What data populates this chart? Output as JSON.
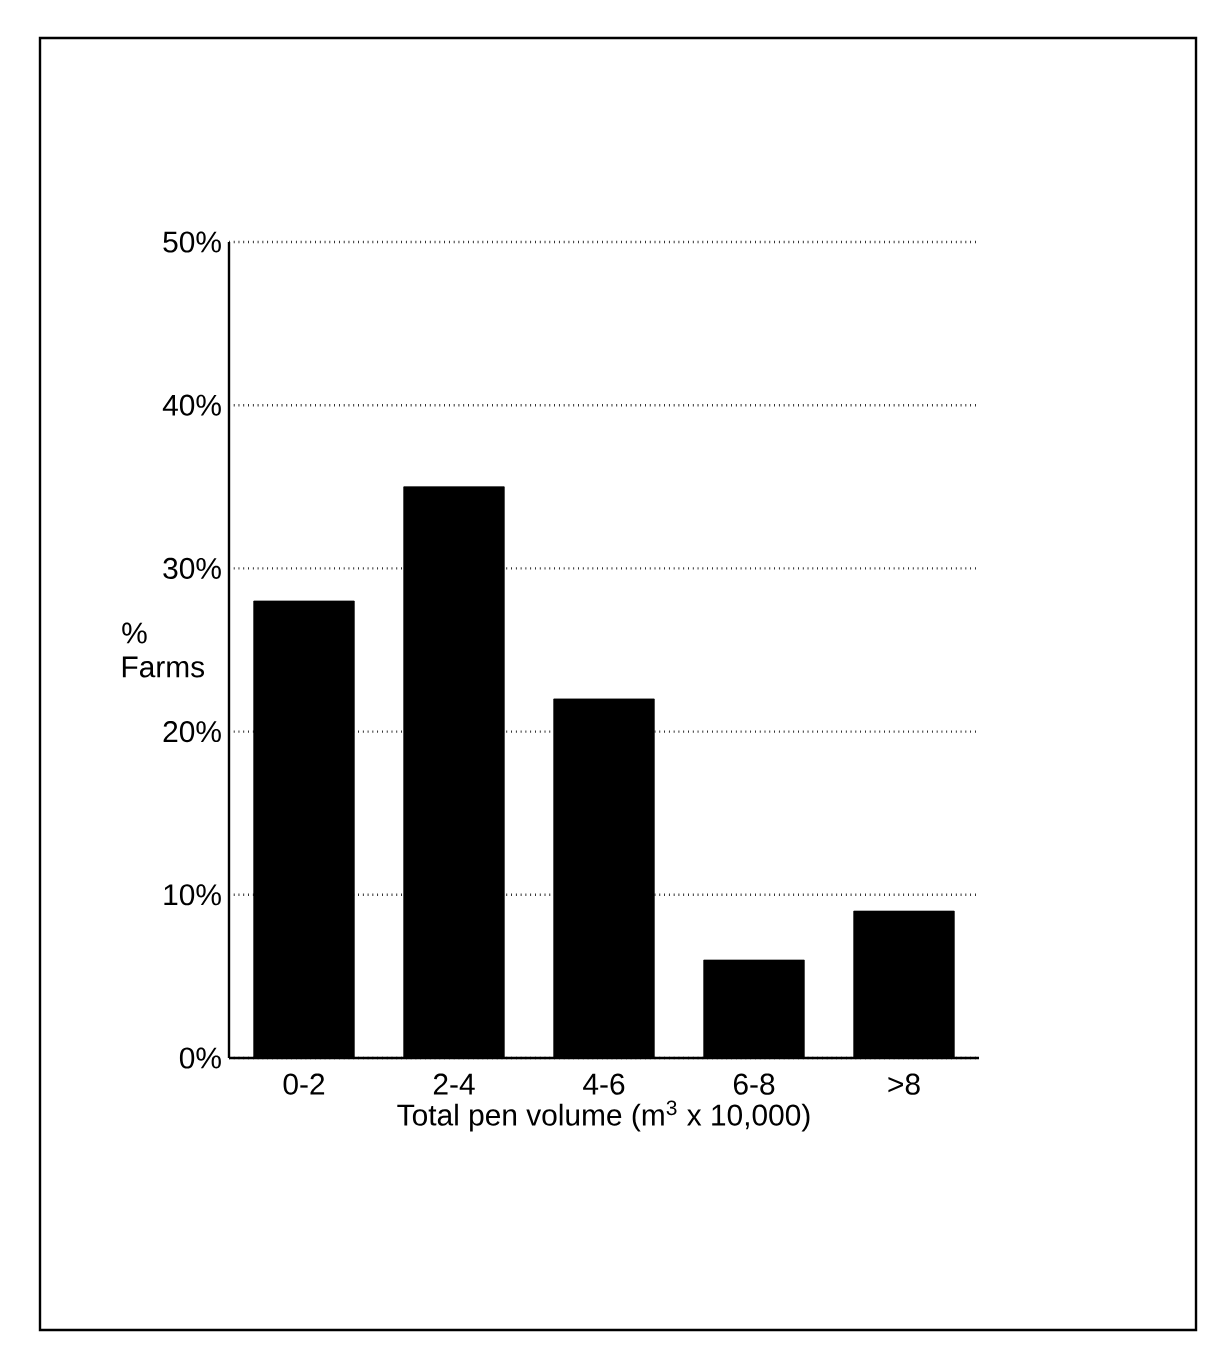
{
  "chart_data": {
    "type": "bar",
    "xlabel": "Total pen volume (m$^{3}$ x 10,000)",
    "ylabel": "% Farms",
    "categories": [
      "0-2",
      "2-4",
      "4-6",
      "6-8",
      ">8"
    ],
    "values": [
      28,
      35,
      22,
      6,
      9
    ],
    "color": "#000000",
    "ylim": [
      0,
      50
    ],
    "yticks": [
      {
        "value": 0,
        "label": "0%"
      },
      {
        "value": 10,
        "label": "10%"
      },
      {
        "value": 20,
        "label": "20%"
      },
      {
        "value": 30,
        "label": "30%"
      },
      {
        "value": 40,
        "label": "40%"
      },
      {
        "value": 50,
        "label": "50%"
      }
    ],
    "grid": "y"
  }
}
